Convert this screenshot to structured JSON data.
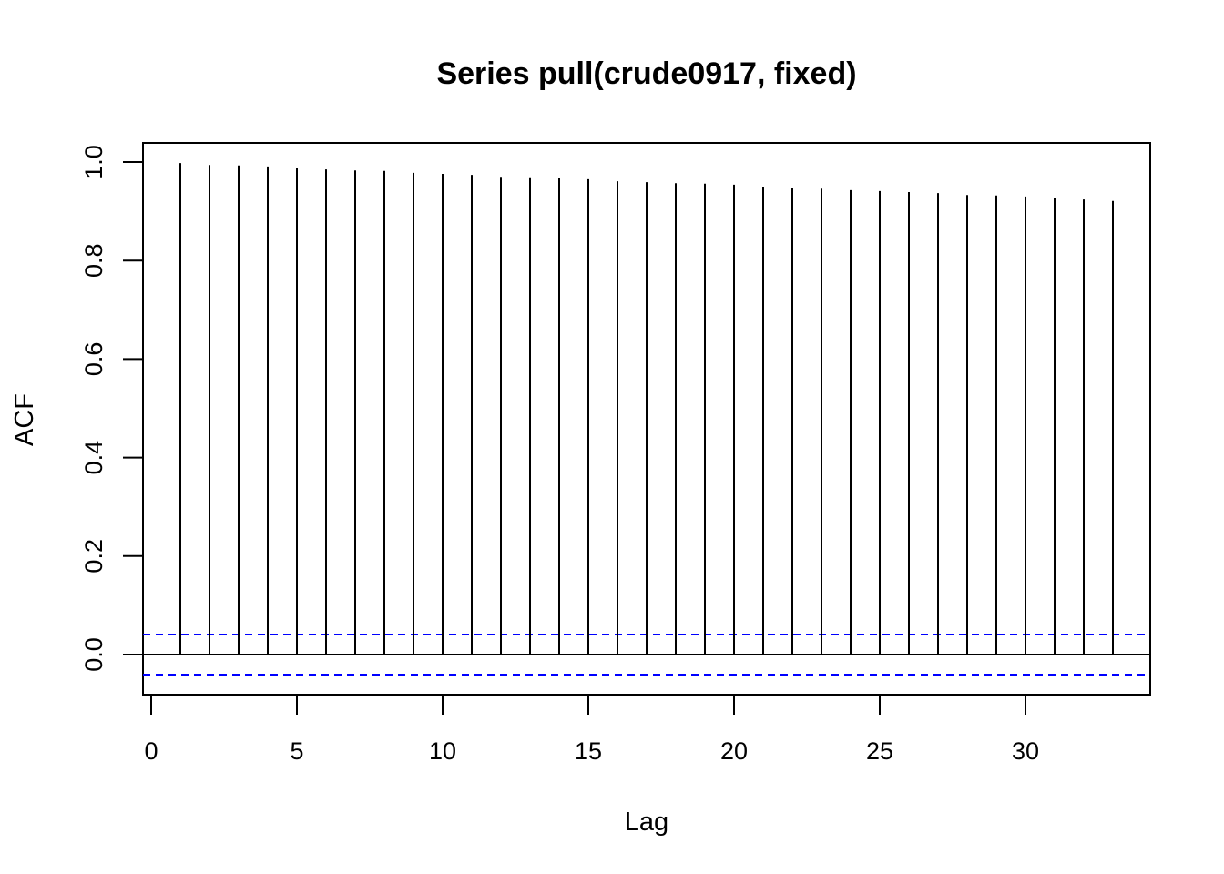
{
  "chart_data": {
    "type": "bar",
    "title": "Series pull(crude0917, fixed)",
    "xlabel": "Lag",
    "ylabel": "ACF",
    "xlim": [
      0,
      34
    ],
    "ylim": [
      -0.08,
      1.02
    ],
    "xticks": [
      0,
      5,
      10,
      15,
      20,
      25,
      30
    ],
    "yticks": [
      0.0,
      0.2,
      0.4,
      0.6,
      0.8,
      1.0
    ],
    "ytick_labels": [
      "0.0",
      "0.2",
      "0.4",
      "0.6",
      "0.8",
      "1.0"
    ],
    "lags": [
      1,
      2,
      3,
      4,
      5,
      6,
      7,
      8,
      9,
      10,
      11,
      12,
      13,
      14,
      15,
      16,
      17,
      18,
      19,
      20,
      21,
      22,
      23,
      24,
      25,
      26,
      27,
      28,
      29,
      30,
      31,
      32,
      33
    ],
    "values": [
      0.998,
      0.994,
      0.993,
      0.991,
      0.989,
      0.985,
      0.983,
      0.982,
      0.978,
      0.976,
      0.974,
      0.97,
      0.969,
      0.967,
      0.965,
      0.961,
      0.959,
      0.957,
      0.956,
      0.954,
      0.95,
      0.948,
      0.946,
      0.943,
      0.941,
      0.939,
      0.937,
      0.933,
      0.932,
      0.93,
      0.926,
      0.924,
      0.921
    ],
    "confidence_bound": 0.0407,
    "confidence_color": "#0000ff",
    "bar_color": "#000000",
    "grid": false
  }
}
